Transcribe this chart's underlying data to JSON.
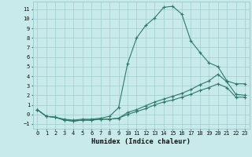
{
  "xlabel": "Humidex (Indice chaleur)",
  "bg_color": "#c8eaea",
  "grid_color": "#9ecece",
  "line_color": "#2d7a6a",
  "xlim": [
    -0.5,
    23.5
  ],
  "ylim": [
    -1.5,
    11.8
  ],
  "xticks": [
    0,
    1,
    2,
    3,
    4,
    5,
    6,
    7,
    8,
    9,
    10,
    11,
    12,
    13,
    14,
    15,
    16,
    17,
    18,
    19,
    20,
    21,
    22,
    23
  ],
  "yticks": [
    -1,
    0,
    1,
    2,
    3,
    4,
    5,
    6,
    7,
    8,
    9,
    10,
    11
  ],
  "line1_x": [
    0,
    1,
    2,
    3,
    4,
    5,
    6,
    7,
    8,
    9,
    10,
    11,
    12,
    13,
    14,
    15,
    16,
    17,
    18,
    19,
    20,
    21,
    22,
    23
  ],
  "line1_y": [
    0.5,
    -0.2,
    -0.3,
    -0.5,
    -0.6,
    -0.5,
    -0.5,
    -0.4,
    -0.2,
    0.7,
    5.3,
    8.0,
    9.3,
    10.1,
    11.2,
    11.3,
    10.5,
    7.7,
    6.5,
    5.4,
    5.0,
    3.5,
    3.2,
    3.2
  ],
  "line2_x": [
    0,
    1,
    2,
    3,
    4,
    5,
    6,
    7,
    8,
    9,
    10,
    11,
    12,
    13,
    14,
    15,
    16,
    17,
    18,
    19,
    20,
    21,
    22,
    23
  ],
  "line2_y": [
    0.5,
    -0.2,
    -0.3,
    -0.6,
    -0.7,
    -0.6,
    -0.6,
    -0.5,
    -0.5,
    -0.4,
    0.2,
    0.5,
    0.9,
    1.3,
    1.6,
    1.9,
    2.2,
    2.6,
    3.1,
    3.5,
    4.2,
    3.4,
    2.1,
    2.0
  ],
  "line3_x": [
    0,
    1,
    2,
    3,
    4,
    5,
    6,
    7,
    8,
    9,
    10,
    11,
    12,
    13,
    14,
    15,
    16,
    17,
    18,
    19,
    20,
    21,
    22,
    23
  ],
  "line3_y": [
    0.5,
    -0.2,
    -0.3,
    -0.6,
    -0.7,
    -0.6,
    -0.6,
    -0.5,
    -0.5,
    -0.4,
    0.0,
    0.3,
    0.6,
    1.0,
    1.3,
    1.5,
    1.8,
    2.1,
    2.5,
    2.8,
    3.2,
    2.8,
    1.8,
    1.8
  ],
  "tick_fontsize": 5.0,
  "xlabel_fontsize": 6.2
}
